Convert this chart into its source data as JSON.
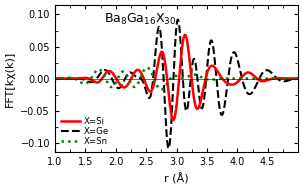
{
  "title": "Ba$_8$Ga$_{16}$X$_{30}$",
  "xlabel": "r (Å)",
  "ylabel": "FFT[kχ(k)]",
  "xlim": [
    1.0,
    5.0
  ],
  "ylim": [
    -0.115,
    0.115
  ],
  "yticks": [
    -0.1,
    -0.05,
    0,
    0.05,
    0.1
  ],
  "xticks": [
    1.0,
    1.5,
    2.0,
    2.5,
    3.0,
    3.5,
    4.0,
    4.5
  ],
  "legend": [
    {
      "label": "X=Si",
      "color": "red",
      "linestyle": "solid",
      "linewidth": 1.8
    },
    {
      "label": "X=Ge",
      "color": "black",
      "linestyle": "dashed",
      "linewidth": 1.5
    },
    {
      "label": "X=Sn",
      "color": "green",
      "linestyle": "dotted",
      "linewidth": 1.8
    }
  ],
  "background_color": "#ffffff",
  "title_fontsize": 9,
  "axis_fontsize": 8,
  "tick_fontsize": 7
}
